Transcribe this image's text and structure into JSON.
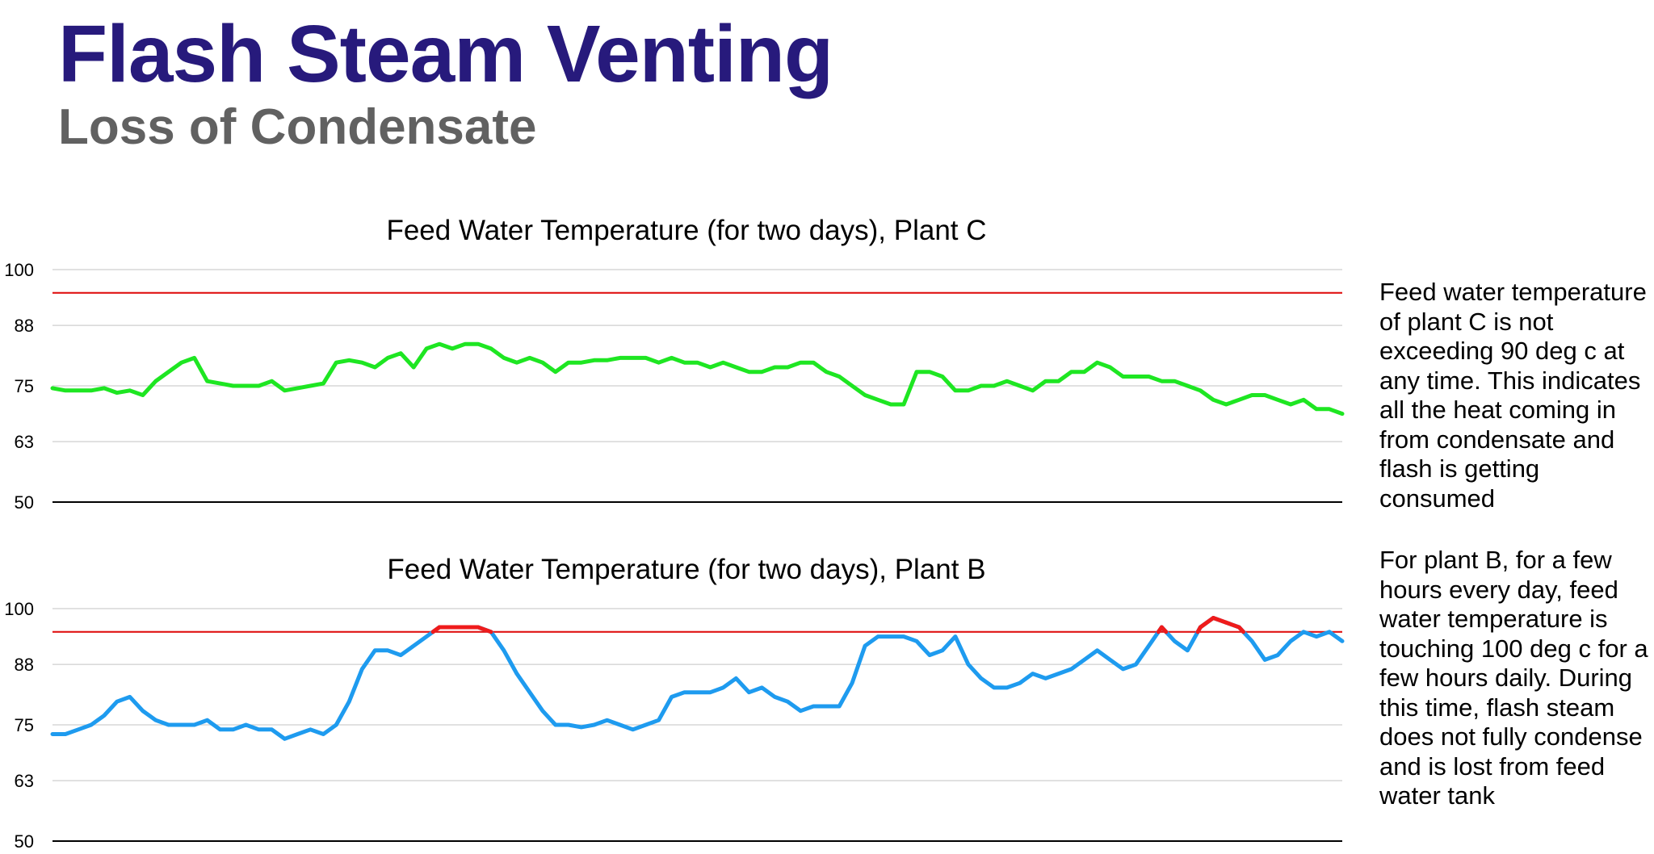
{
  "page": {
    "title": "Flash Steam Venting",
    "subtitle": "Loss of Condensate",
    "notes": [
      "Feed water temperature of plant C is not exceeding 90 deg c at any time. This indicates all the heat coming in from condensate and flash is getting consumed",
      "For plant B, for a few hours every day, feed water temperature is touching 100 deg c for a few hours daily. During this time, flash steam does not fully condense and is lost from feed water tank"
    ]
  },
  "colors": {
    "title": "#271a7c",
    "subtitle": "#616161",
    "plant_c_series": "#1ee622",
    "plant_b_series": "#1e9bef",
    "above_threshold": "#ef1b1b",
    "threshold_line": "#e01414",
    "gridline": "#cfcfcf"
  },
  "chart_data": [
    {
      "type": "line",
      "title": "Feed Water Temperature (for two days), Plant C",
      "xlabel": "",
      "ylabel": "",
      "ylim": [
        50,
        100
      ],
      "yticks": [
        50,
        63,
        75,
        88,
        100
      ],
      "ytick_labels": [
        "50",
        "63",
        "75",
        "88",
        "100"
      ],
      "grid": true,
      "legend": "none",
      "reference_line": 95,
      "x": [
        0,
        1,
        2,
        3,
        4,
        5,
        6,
        7,
        8,
        9,
        10,
        11,
        12,
        13,
        14,
        15,
        16,
        17,
        18,
        19,
        20,
        21,
        22,
        23,
        24,
        25,
        26,
        27,
        28,
        29,
        30,
        31,
        32,
        33,
        34,
        35,
        36,
        37,
        38,
        39,
        40,
        41,
        42,
        43,
        44,
        45,
        46,
        47,
        48,
        49,
        50,
        51,
        52,
        53,
        54,
        55,
        56,
        57,
        58,
        59,
        60,
        61,
        62,
        63,
        64,
        65,
        66,
        67,
        68,
        69,
        70,
        71,
        72,
        73,
        74,
        75,
        76,
        77,
        78,
        79,
        80,
        81,
        82,
        83,
        84,
        85,
        86,
        87,
        88,
        89,
        90,
        91,
        92,
        93,
        94,
        95,
        96,
        97,
        98,
        99,
        100
      ],
      "series": [
        {
          "values": [
            74.5,
            74,
            74,
            74,
            74.5,
            73.5,
            74,
            73,
            76,
            78,
            80,
            81,
            76,
            75.5,
            75,
            75,
            75,
            76,
            74,
            74.5,
            75,
            75.5,
            80,
            80.5,
            80,
            79,
            81,
            82,
            79,
            83,
            84,
            83,
            84,
            84,
            83,
            81,
            80,
            81,
            80,
            78,
            80,
            80,
            80.5,
            80.5,
            81,
            81,
            81,
            80,
            81,
            80,
            80,
            79,
            80,
            79,
            78,
            78,
            79,
            79,
            80,
            80,
            78,
            77,
            75,
            73,
            72,
            71,
            71,
            78,
            78,
            77,
            74,
            74,
            75,
            75,
            76,
            75,
            74,
            76,
            76,
            78,
            78,
            80,
            79,
            77,
            77,
            77,
            76,
            76,
            75,
            74,
            72,
            71,
            72,
            73,
            73,
            72,
            71,
            72,
            70,
            70,
            69
          ]
        }
      ]
    },
    {
      "type": "line",
      "title": "Feed Water Temperature (for two days), Plant B",
      "xlabel": "",
      "ylabel": "",
      "ylim": [
        50,
        100
      ],
      "yticks": [
        50,
        63,
        75,
        88,
        100
      ],
      "ytick_labels": [
        "50",
        "63",
        "75",
        "88",
        "100"
      ],
      "grid": true,
      "legend": "none",
      "reference_line": 95,
      "x": [
        0,
        1,
        2,
        3,
        4,
        5,
        6,
        7,
        8,
        9,
        10,
        11,
        12,
        13,
        14,
        15,
        16,
        17,
        18,
        19,
        20,
        21,
        22,
        23,
        24,
        25,
        26,
        27,
        28,
        29,
        30,
        31,
        32,
        33,
        34,
        35,
        36,
        37,
        38,
        39,
        40,
        41,
        42,
        43,
        44,
        45,
        46,
        47,
        48,
        49,
        50,
        51,
        52,
        53,
        54,
        55,
        56,
        57,
        58,
        59,
        60,
        61,
        62,
        63,
        64,
        65,
        66,
        67,
        68,
        69,
        70,
        71,
        72,
        73,
        74,
        75,
        76,
        77,
        78,
        79,
        80,
        81,
        82,
        83,
        84,
        85,
        86,
        87,
        88,
        89,
        90,
        91,
        92,
        93,
        94,
        95,
        96,
        97,
        98,
        99,
        100
      ],
      "series": [
        {
          "values": [
            73,
            73,
            74,
            75,
            77,
            80,
            81,
            78,
            76,
            75,
            75,
            75,
            76,
            74,
            74,
            75,
            74,
            74,
            72,
            73,
            74,
            73,
            75,
            80,
            87,
            91,
            91,
            90,
            92,
            94,
            96,
            96,
            96,
            96,
            95,
            91,
            86,
            82,
            78,
            75,
            75,
            74.5,
            75,
            76,
            75,
            74,
            75,
            76,
            81,
            82,
            82,
            82,
            83,
            85,
            82,
            83,
            81,
            80,
            78,
            79,
            79,
            79,
            84,
            92,
            94,
            94,
            94,
            93,
            90,
            91,
            94,
            88,
            85,
            83,
            83,
            84,
            86,
            85,
            86,
            87,
            89,
            91,
            89,
            87,
            88,
            92,
            96,
            93,
            91,
            96,
            98,
            97,
            96,
            93,
            89,
            90,
            93,
            95,
            94,
            95,
            93
          ]
        }
      ]
    }
  ]
}
